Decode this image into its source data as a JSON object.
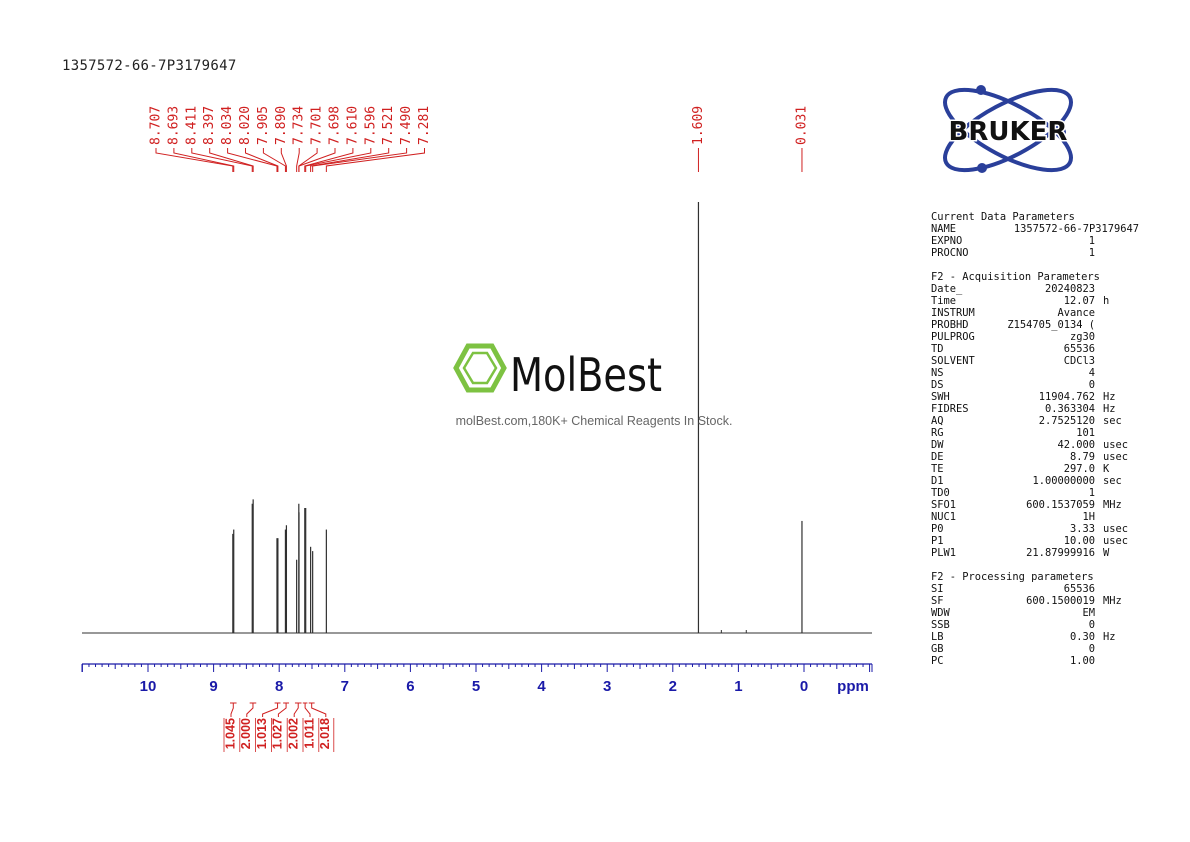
{
  "title": "1357572-66-7P3179647",
  "brand": {
    "logo_text": "BRUKER",
    "watermark_text": "MolBest",
    "watermark_sub": "molBest.com,180K+ Chemical Reagents In Stock."
  },
  "colors": {
    "annotation": "#d02020",
    "axis": "#1a1aa8",
    "spectrum": "#303030"
  },
  "chart_data": {
    "type": "line",
    "title": "",
    "xlabel": "ppm",
    "ylabel": "",
    "xlim": [
      11.0,
      -1.0
    ],
    "x_reversed": true,
    "grid": false,
    "x_ticks": [
      10,
      9,
      8,
      7,
      6,
      5,
      4,
      3,
      2,
      1,
      0
    ],
    "peak_labels": [
      "8.707",
      "8.693",
      "8.411",
      "8.397",
      "8.034",
      "8.020",
      "7.905",
      "7.890",
      "7.734",
      "7.701",
      "7.698",
      "7.610",
      "7.596",
      "7.521",
      "7.490",
      "7.281",
      "1.609",
      "0.031"
    ],
    "peaks": [
      {
        "ppm": 8.707,
        "height": 0.23
      },
      {
        "ppm": 8.693,
        "height": 0.24
      },
      {
        "ppm": 8.411,
        "height": 0.3
      },
      {
        "ppm": 8.397,
        "height": 0.31
      },
      {
        "ppm": 8.034,
        "height": 0.22
      },
      {
        "ppm": 8.02,
        "height": 0.22
      },
      {
        "ppm": 7.905,
        "height": 0.24
      },
      {
        "ppm": 7.89,
        "height": 0.25
      },
      {
        "ppm": 7.734,
        "height": 0.17
      },
      {
        "ppm": 7.701,
        "height": 0.3
      },
      {
        "ppm": 7.698,
        "height": 0.28
      },
      {
        "ppm": 7.61,
        "height": 0.29
      },
      {
        "ppm": 7.596,
        "height": 0.29
      },
      {
        "ppm": 7.521,
        "height": 0.2
      },
      {
        "ppm": 7.49,
        "height": 0.19
      },
      {
        "ppm": 7.281,
        "height": 0.24
      },
      {
        "ppm": 1.609,
        "height": 1.0
      },
      {
        "ppm": 0.031,
        "height": 0.26
      }
    ],
    "integrals": [
      {
        "value": "1.045",
        "from": 8.75,
        "to": 8.65
      },
      {
        "value": "2.000",
        "from": 8.45,
        "to": 8.35
      },
      {
        "value": "1.013",
        "from": 8.07,
        "to": 7.98
      },
      {
        "value": "1.027",
        "from": 7.94,
        "to": 7.85
      },
      {
        "value": "2.002",
        "from": 7.76,
        "to": 7.66
      },
      {
        "value": "1.011",
        "from": 7.64,
        "to": 7.57
      },
      {
        "value": "2.018",
        "from": 7.55,
        "to": 7.46
      }
    ]
  },
  "parameters": [
    {
      "heading": "Current Data Parameters",
      "rows": [
        {
          "label": "NAME",
          "value": "1357572-66-7P3179647",
          "unit": ""
        },
        {
          "label": "EXPNO",
          "value": "1",
          "unit": ""
        },
        {
          "label": "PROCNO",
          "value": "1",
          "unit": ""
        }
      ]
    },
    {
      "heading": "F2 - Acquisition Parameters",
      "rows": [
        {
          "label": "Date_",
          "value": "20240823",
          "unit": ""
        },
        {
          "label": "Time",
          "value": "12.07",
          "unit": "h"
        },
        {
          "label": "INSTRUM",
          "value": "Avance",
          "unit": ""
        },
        {
          "label": "PROBHD",
          "value": "Z154705_0134 (",
          "unit": ""
        },
        {
          "label": "PULPROG",
          "value": "zg30",
          "unit": ""
        },
        {
          "label": "TD",
          "value": "65536",
          "unit": ""
        },
        {
          "label": "SOLVENT",
          "value": "CDCl3",
          "unit": ""
        },
        {
          "label": "NS",
          "value": "4",
          "unit": ""
        },
        {
          "label": "DS",
          "value": "0",
          "unit": ""
        },
        {
          "label": "SWH",
          "value": "11904.762",
          "unit": "Hz"
        },
        {
          "label": "FIDRES",
          "value": "0.363304",
          "unit": "Hz"
        },
        {
          "label": "AQ",
          "value": "2.7525120",
          "unit": "sec"
        },
        {
          "label": "RG",
          "value": "101",
          "unit": ""
        },
        {
          "label": "DW",
          "value": "42.000",
          "unit": "usec"
        },
        {
          "label": "DE",
          "value": "8.79",
          "unit": "usec"
        },
        {
          "label": "TE",
          "value": "297.0",
          "unit": "K"
        },
        {
          "label": "D1",
          "value": "1.00000000",
          "unit": "sec"
        },
        {
          "label": "TD0",
          "value": "1",
          "unit": ""
        },
        {
          "label": "SFO1",
          "value": "600.1537059",
          "unit": "MHz"
        },
        {
          "label": "NUC1",
          "value": "1H",
          "unit": ""
        },
        {
          "label": "P0",
          "value": "3.33",
          "unit": "usec"
        },
        {
          "label": "P1",
          "value": "10.00",
          "unit": "usec"
        },
        {
          "label": "PLW1",
          "value": "21.87999916",
          "unit": "W"
        }
      ]
    },
    {
      "heading": "F2 - Processing parameters",
      "rows": [
        {
          "label": "SI",
          "value": "65536",
          "unit": ""
        },
        {
          "label": "SF",
          "value": "600.1500019",
          "unit": "MHz"
        },
        {
          "label": "WDW",
          "value": "EM",
          "unit": ""
        },
        {
          "label": "SSB",
          "value": "0",
          "unit": ""
        },
        {
          "label": "LB",
          "value": "0.30",
          "unit": "Hz"
        },
        {
          "label": "GB",
          "value": "0",
          "unit": ""
        },
        {
          "label": "PC",
          "value": "1.00",
          "unit": ""
        }
      ]
    }
  ]
}
